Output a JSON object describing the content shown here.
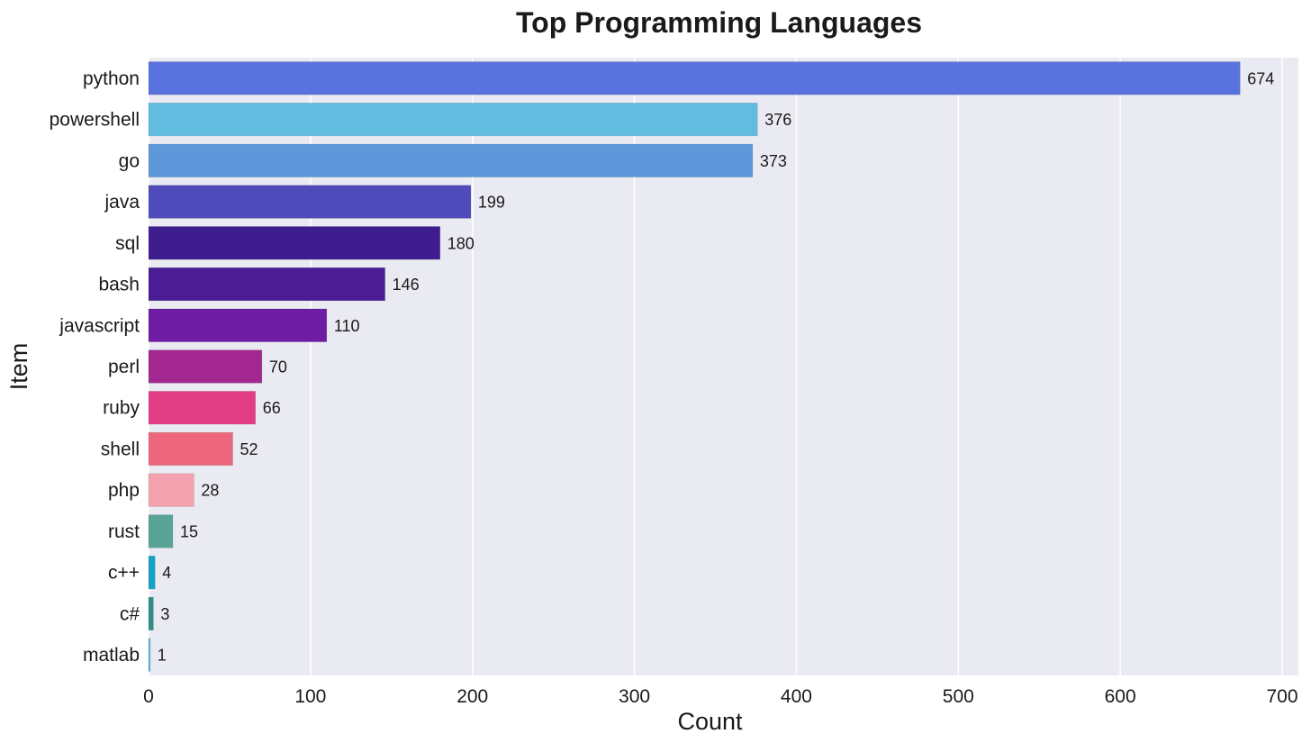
{
  "chart_data": {
    "type": "bar",
    "orientation": "horizontal",
    "title": "Top Programming Languages",
    "xlabel": "Count",
    "ylabel": "Item",
    "xlim": [
      0,
      710
    ],
    "xticks": [
      0,
      100,
      200,
      300,
      400,
      500,
      600,
      700
    ],
    "grid": "vertical",
    "legend": "none",
    "background": "#EAEAF2",
    "bars": [
      {
        "category": "python",
        "value": 674,
        "color": "#5A72DE"
      },
      {
        "category": "powershell",
        "value": 376,
        "color": "#62BCE0"
      },
      {
        "category": "go",
        "value": 373,
        "color": "#5E98DB"
      },
      {
        "category": "java",
        "value": 199,
        "color": "#4F4BBA"
      },
      {
        "category": "sql",
        "value": 180,
        "color": "#3E1D8E"
      },
      {
        "category": "bash",
        "value": 146,
        "color": "#4A1D94"
      },
      {
        "category": "javascript",
        "value": 110,
        "color": "#6D1CA3"
      },
      {
        "category": "perl",
        "value": 70,
        "color": "#A2288F"
      },
      {
        "category": "ruby",
        "value": 66,
        "color": "#E23E84"
      },
      {
        "category": "shell",
        "value": 52,
        "color": "#EC677B"
      },
      {
        "category": "php",
        "value": 28,
        "color": "#F4A1B0"
      },
      {
        "category": "rust",
        "value": 15,
        "color": "#5AA497"
      },
      {
        "category": "c++",
        "value": 4,
        "color": "#13A3C5"
      },
      {
        "category": "c#",
        "value": 3,
        "color": "#2E8F86"
      },
      {
        "category": "matlab",
        "value": 1,
        "color": "#4DB6CC"
      }
    ]
  }
}
